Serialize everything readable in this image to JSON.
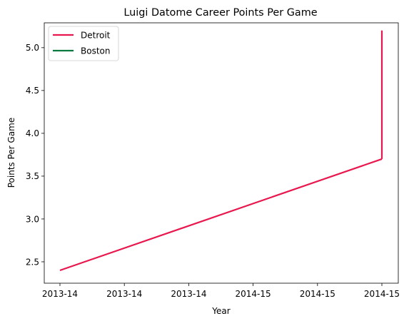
{
  "chart_data": {
    "type": "line",
    "title": "Luigi Datome Career Points Per Game",
    "xlabel": "Year",
    "ylabel": "Points Per Game",
    "x_tick_labels": [
      "2013-14",
      "2013-14",
      "2013-14",
      "2014-15",
      "2014-15",
      "2014-15"
    ],
    "ylim": [
      2.25,
      5.29
    ],
    "y_ticks": [
      2.5,
      3.0,
      3.5,
      4.0,
      4.5,
      5.0
    ],
    "y_tick_labels": [
      "2.5",
      "3.0",
      "3.5",
      "4.0",
      "4.5",
      "5.0"
    ],
    "grid": false,
    "legend_position": "top-left",
    "series": [
      {
        "name": "Detroit",
        "color": "#e8174d",
        "points": [
          {
            "x": "2013-14",
            "y": 2.4
          },
          {
            "x": "2014-15",
            "y": 3.7
          }
        ]
      },
      {
        "name": "Boston",
        "color": "#057a3e",
        "points": [
          {
            "x": "2014-15",
            "y": 3.7
          },
          {
            "x": "2014-15",
            "y": 5.2
          }
        ]
      }
    ]
  }
}
